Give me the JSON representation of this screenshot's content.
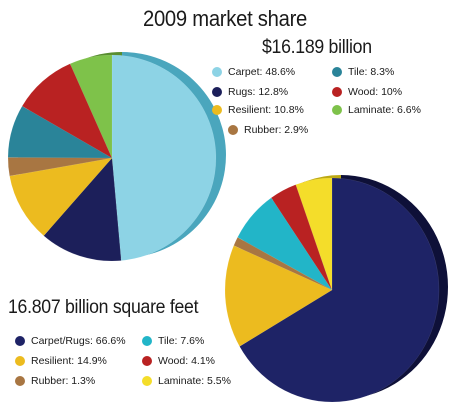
{
  "page": {
    "title": "2009 market share"
  },
  "chart_data": [
    {
      "type": "pie",
      "title": "$16.189 billion",
      "slices": [
        {
          "label": "Carpet",
          "value": 48.6,
          "display": "48.6%",
          "color": "#8dd3e5",
          "side": "#4aa6bd"
        },
        {
          "label": "Rugs",
          "value": 12.8,
          "display": "12.8%",
          "color": "#1c1f5a",
          "side": "#0f1138"
        },
        {
          "label": "Resilient",
          "value": 10.8,
          "display": "10.8%",
          "color": "#ecbb1f",
          "side": "#b88d0f"
        },
        {
          "label": "Rubber",
          "value": 2.9,
          "display": "2.9%",
          "color": "#a87642",
          "side": "#7a532b"
        },
        {
          "label": "Tile",
          "value": 8.3,
          "display": "8.3%",
          "color": "#2a8499",
          "side": "#1a5b6a"
        },
        {
          "label": "Wood",
          "value": 10,
          "display": "10%",
          "color": "#b92222",
          "side": "#841414"
        },
        {
          "label": "Laminate",
          "value": 6.6,
          "display": "6.6%",
          "color": "#7ec24a",
          "side": "#588d30"
        }
      ],
      "legend": [
        {
          "label": "Carpet",
          "value": "48.6%",
          "color": "#8dd3e5"
        },
        {
          "label": "Tile",
          "value": "8.3%",
          "color": "#2a8499"
        },
        {
          "label": "Rugs",
          "value": "12.8%",
          "color": "#1c1f5a"
        },
        {
          "label": "Wood",
          "value": "10%",
          "color": "#b92222"
        },
        {
          "label": "Resilient",
          "value": "10.8%",
          "color": "#ecbb1f"
        },
        {
          "label": "Laminate",
          "value": "6.6%",
          "color": "#7ec24a"
        },
        {
          "label": "Rubber",
          "value": "2.9%",
          "color": "#a87642"
        }
      ]
    },
    {
      "type": "pie",
      "title": "16.807 billion square feet",
      "slices": [
        {
          "label": "Carpet/Rugs",
          "value": 66.6,
          "display": "66.6%",
          "color": "#1e2366",
          "side": "#0e1038"
        },
        {
          "label": "Resilient",
          "value": 14.9,
          "display": "14.9%",
          "color": "#ecbb1f",
          "side": "#b88d0f"
        },
        {
          "label": "Rubber",
          "value": 1.3,
          "display": "1.3%",
          "color": "#a87642",
          "side": "#7a532b"
        },
        {
          "label": "Tile",
          "value": 7.6,
          "display": "7.6%",
          "color": "#22b5c8",
          "side": "#167d8b"
        },
        {
          "label": "Wood",
          "value": 4.1,
          "display": "4.1%",
          "color": "#b92222",
          "side": "#841414"
        },
        {
          "label": "Laminate",
          "value": 5.5,
          "display": "5.5%",
          "color": "#f4dd2a",
          "side": "#bda913"
        }
      ],
      "legend": [
        {
          "label": "Carpet/Rugs",
          "value": "66.6%",
          "color": "#1e2366"
        },
        {
          "label": "Tile",
          "value": "7.6%",
          "color": "#22b5c8"
        },
        {
          "label": "Resilient",
          "value": "14.9%",
          "color": "#ecbb1f"
        },
        {
          "label": "Wood",
          "value": "4.1%",
          "color": "#b92222"
        },
        {
          "label": "Rubber",
          "value": "1.3%",
          "color": "#a87642"
        },
        {
          "label": "Laminate",
          "value": "5.5%",
          "color": "#f4dd2a"
        }
      ]
    }
  ]
}
